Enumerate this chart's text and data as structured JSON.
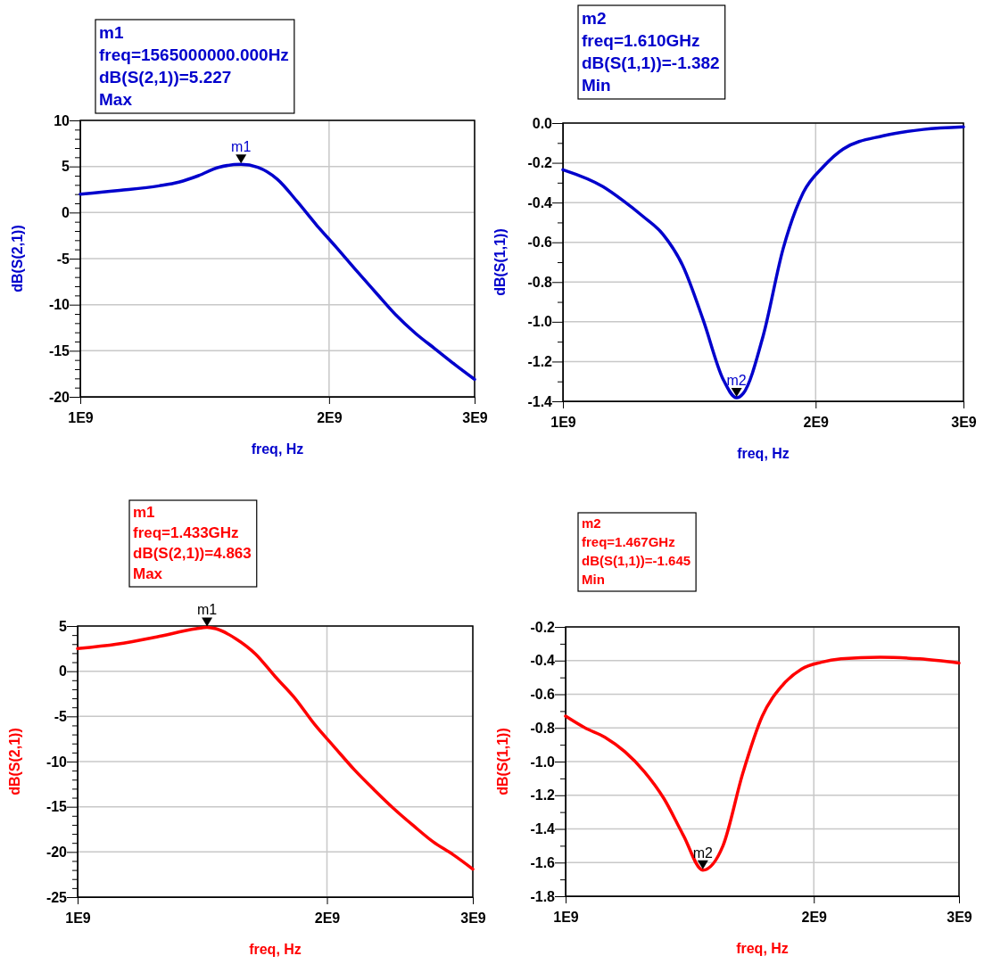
{
  "chart_data": [
    {
      "type": "line",
      "xlabel": "freq, Hz",
      "ylabel": "dB(S(2,1))",
      "log": "x",
      "grid": true,
      "marker": "none",
      "line_style": "solid",
      "x": [
        1000000000,
        1116000000,
        1246000000,
        1316000000,
        1390000000,
        1469000000,
        1565000000,
        1640000000,
        1732000000,
        1830000000,
        1933000000,
        2042000000,
        2158000000,
        2279000000,
        2408000000,
        2544000000,
        2688000000,
        2840000000,
        3000000000
      ],
      "series": [
        {
          "color": "#0000cc",
          "values": [
            2.0,
            2.4,
            2.9,
            3.3,
            4.0,
            4.9,
            5.227,
            4.9,
            3.6,
            1.2,
            -1.4,
            -3.8,
            -6.3,
            -8.7,
            -11.1,
            -13.1,
            -14.8,
            -16.5,
            -18.1
          ]
        }
      ],
      "xlim": [
        1000000000,
        3000000000
      ],
      "xticks": [
        {
          "value": 1000000000,
          "label": "1E9"
        },
        {
          "value": 2000000000,
          "label": "2E9"
        },
        {
          "value": 3000000000,
          "label": "3E9"
        }
      ],
      "ylim": [
        -20,
        10
      ],
      "yticks": [
        -20,
        {
          "value": -19,
          "label": null
        },
        {
          "value": -18,
          "label": null
        },
        {
          "value": -17,
          "label": null
        },
        {
          "value": -16,
          "label": null
        },
        -15,
        {
          "value": -14,
          "label": null
        },
        {
          "value": -13,
          "label": null
        },
        {
          "value": -12,
          "label": null
        },
        {
          "value": -11,
          "label": null
        },
        -10,
        {
          "value": -9,
          "label": null
        },
        {
          "value": -8,
          "label": null
        },
        {
          "value": -7,
          "label": null
        },
        {
          "value": -6,
          "label": null
        },
        -5,
        {
          "value": -4,
          "label": null
        },
        {
          "value": -3,
          "label": null
        },
        {
          "value": -2,
          "label": null
        },
        {
          "value": -1,
          "label": null
        },
        0,
        {
          "value": 1,
          "label": null
        },
        {
          "value": 2,
          "label": null
        },
        {
          "value": 3,
          "label": null
        },
        {
          "value": 4,
          "label": null
        },
        5,
        {
          "value": 6,
          "label": null
        },
        {
          "value": 7,
          "label": null
        },
        {
          "value": 8,
          "label": null
        },
        {
          "value": 9,
          "label": null
        },
        10
      ],
      "annotations": [
        "m1",
        "freq=1565000000.000Hz",
        "dB(S(2,1))=5.227",
        "Max",
        {
          "text": "m1",
          "x": 1565000000,
          "y": 5.227
        }
      ]
    },
    {
      "type": "line",
      "xlabel": "freq, Hz",
      "ylabel": "dB(S(1,1))",
      "log": "x",
      "grid": true,
      "marker": "none",
      "line_style": "solid",
      "x": [
        1000000000,
        1116000000,
        1179000000,
        1246000000,
        1316000000,
        1390000000,
        1469000000,
        1552000000,
        1610000000,
        1640000000,
        1732000000,
        1830000000,
        1933000000,
        2042000000,
        2158000000,
        2408000000,
        2688000000,
        3000000000
      ],
      "series": [
        {
          "color": "#0000cc",
          "values": [
            -0.235,
            -0.32,
            -0.39,
            -0.47,
            -0.56,
            -0.72,
            -0.99,
            -1.29,
            -1.382,
            -1.36,
            -1.07,
            -0.63,
            -0.35,
            -0.22,
            -0.13,
            -0.064,
            -0.032,
            -0.019
          ]
        }
      ],
      "xlim": [
        1000000000,
        3000000000
      ],
      "xticks": [
        {
          "value": 1000000000,
          "label": "1E9"
        },
        {
          "value": 2000000000,
          "label": "2E9"
        },
        {
          "value": 3000000000,
          "label": "3E9"
        }
      ],
      "ylim": [
        -1.4,
        0
      ],
      "yticks": [
        {
          "value": -1.4,
          "label": "-1.4"
        },
        {
          "value": -1.3,
          "label": null
        },
        {
          "value": -1.2,
          "label": "-1.2"
        },
        {
          "value": -1.1,
          "label": null
        },
        {
          "value": -1.0,
          "label": "-1.0"
        },
        {
          "value": -0.9,
          "label": null
        },
        {
          "value": -0.8,
          "label": "-0.8"
        },
        {
          "value": -0.7,
          "label": null
        },
        {
          "value": -0.6,
          "label": "-0.6"
        },
        {
          "value": -0.5,
          "label": null
        },
        {
          "value": -0.4,
          "label": "-0.4"
        },
        {
          "value": -0.3,
          "label": null
        },
        {
          "value": -0.2,
          "label": "-0.2"
        },
        {
          "value": -0.1,
          "label": null
        },
        {
          "value": 0,
          "label": "0.0"
        }
      ],
      "annotations": [
        "m2",
        "freq=1.610GHz",
        "dB(S(1,1))=-1.382",
        "Min",
        {
          "text": "m2",
          "x": 1610000000,
          "y": -1.382
        }
      ]
    },
    {
      "type": "line",
      "xlabel": "freq, Hz",
      "ylabel": "dB(S(2,1))",
      "log": "x",
      "grid": true,
      "marker": "none",
      "line_style": "solid",
      "x": [
        1000000000,
        1116000000,
        1246000000,
        1390000000,
        1433000000,
        1469000000,
        1552000000,
        1640000000,
        1732000000,
        1830000000,
        1933000000,
        2042000000,
        2158000000,
        2279000000,
        2408000000,
        2544000000,
        2688000000,
        2840000000,
        3000000000
      ],
      "series": [
        {
          "color": "#ff0000",
          "values": [
            2.5,
            3.0,
            3.8,
            4.7,
            4.863,
            4.7,
            3.6,
            1.9,
            -0.6,
            -3.0,
            -5.9,
            -8.4,
            -10.9,
            -13.1,
            -15.2,
            -17.1,
            -18.9,
            -20.3,
            -21.9
          ]
        }
      ],
      "xlim": [
        1000000000,
        3000000000
      ],
      "xticks": [
        {
          "value": 1000000000,
          "label": "1E9"
        },
        {
          "value": 2000000000,
          "label": "2E9"
        },
        {
          "value": 3000000000,
          "label": "3E9"
        }
      ],
      "ylim": [
        -25,
        5
      ],
      "yticks": [
        -25,
        {
          "value": -24,
          "label": null
        },
        {
          "value": -23,
          "label": null
        },
        {
          "value": -22,
          "label": null
        },
        {
          "value": -21,
          "label": null
        },
        -20,
        {
          "value": -19,
          "label": null
        },
        {
          "value": -18,
          "label": null
        },
        {
          "value": -17,
          "label": null
        },
        {
          "value": -16,
          "label": null
        },
        -15,
        {
          "value": -14,
          "label": null
        },
        {
          "value": -13,
          "label": null
        },
        {
          "value": -12,
          "label": null
        },
        {
          "value": -11,
          "label": null
        },
        -10,
        {
          "value": -9,
          "label": null
        },
        {
          "value": -8,
          "label": null
        },
        {
          "value": -7,
          "label": null
        },
        {
          "value": -6,
          "label": null
        },
        -5,
        {
          "value": -4,
          "label": null
        },
        {
          "value": -3,
          "label": null
        },
        {
          "value": -2,
          "label": null
        },
        {
          "value": -1,
          "label": null
        },
        0,
        {
          "value": 1,
          "label": null
        },
        {
          "value": 2,
          "label": null
        },
        {
          "value": 3,
          "label": null
        },
        {
          "value": 4,
          "label": null
        },
        5
      ],
      "annotations": [
        "m1",
        "freq=1.433GHz",
        "dB(S(2,1))=4.863",
        "Max",
        {
          "text": "m1",
          "x": 1433000000,
          "y": 4.863
        }
      ]
    },
    {
      "type": "line",
      "xlabel": "freq, Hz",
      "ylabel": "dB(S(1,1))",
      "log": "x",
      "grid": true,
      "marker": "none",
      "line_style": "solid",
      "x": [
        1000000000,
        1056000000,
        1116000000,
        1179000000,
        1246000000,
        1316000000,
        1390000000,
        1467000000,
        1552000000,
        1640000000,
        1732000000,
        1830000000,
        1933000000,
        2042000000,
        2158000000,
        2408000000,
        2688000000,
        3000000000
      ],
      "series": [
        {
          "color": "#ff0000",
          "values": [
            -0.73,
            -0.8,
            -0.855,
            -0.94,
            -1.06,
            -1.22,
            -1.44,
            -1.645,
            -1.5,
            -1.07,
            -0.73,
            -0.55,
            -0.45,
            -0.41,
            -0.39,
            -0.38,
            -0.39,
            -0.415
          ]
        }
      ],
      "xlim": [
        1000000000,
        3000000000
      ],
      "xticks": [
        {
          "value": 1000000000,
          "label": "1E9"
        },
        {
          "value": 2000000000,
          "label": "2E9"
        },
        {
          "value": 3000000000,
          "label": "3E9"
        }
      ],
      "ylim": [
        -1.8,
        -0.2
      ],
      "yticks": [
        {
          "value": -1.8,
          "label": "-1.8"
        },
        {
          "value": -1.7,
          "label": null
        },
        {
          "value": -1.6,
          "label": "-1.6"
        },
        {
          "value": -1.5,
          "label": null
        },
        {
          "value": -1.4,
          "label": "-1.4"
        },
        {
          "value": -1.3,
          "label": null
        },
        {
          "value": -1.2,
          "label": "-1.2"
        },
        {
          "value": -1.1,
          "label": null
        },
        {
          "value": -1.0,
          "label": "-1.0"
        },
        {
          "value": -0.9,
          "label": null
        },
        {
          "value": -0.8,
          "label": "-0.8"
        },
        {
          "value": -0.7,
          "label": null
        },
        {
          "value": -0.6,
          "label": "-0.6"
        },
        {
          "value": -0.5,
          "label": null
        },
        {
          "value": -0.4,
          "label": "-0.4"
        },
        {
          "value": -0.3,
          "label": null
        },
        {
          "value": -0.2,
          "label": "-0.2"
        }
      ],
      "annotations": [
        "m2",
        "freq=1.467GHz",
        "dB(S(1,1))=-1.645",
        "Min",
        {
          "text": "m2",
          "x": 1467000000,
          "y": -1.645
        }
      ]
    }
  ]
}
